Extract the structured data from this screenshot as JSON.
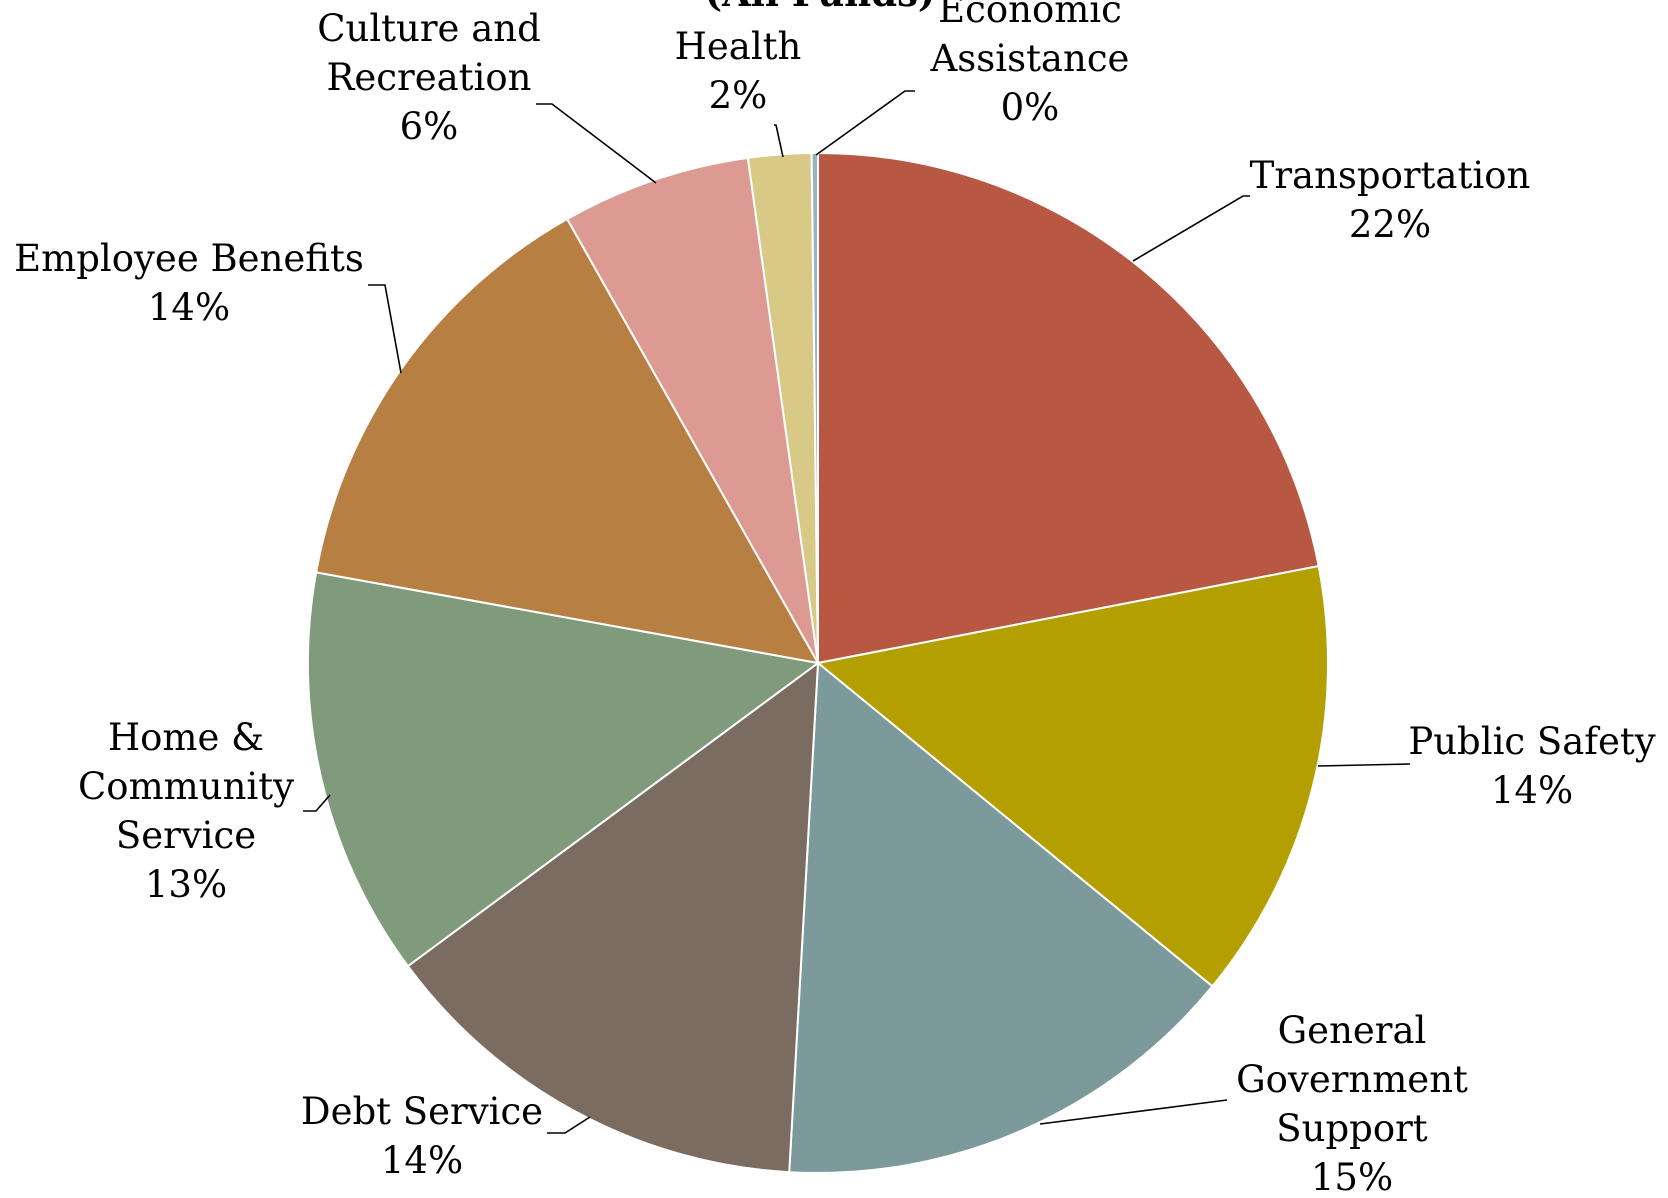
{
  "chart_data": {
    "type": "pie",
    "title": "(All Funds)",
    "start_angle_deg": 0,
    "direction": "clockwise",
    "slices": [
      {
        "label": "Transportation",
        "value": 22,
        "value_label": "22%",
        "color": "#b85842"
      },
      {
        "label": "Public Safety",
        "value": 14,
        "value_label": "14%",
        "color": "#b39f00"
      },
      {
        "label": "General Government Support",
        "value": 15,
        "value_label": "15%",
        "color": "#7c999b"
      },
      {
        "label": "Debt Service",
        "value": 14,
        "value_label": "14%",
        "color": "#7b6c62"
      },
      {
        "label": "Home & Community Service",
        "value": 13,
        "value_label": "13%",
        "color": "#7f9b7c"
      },
      {
        "label": "Employee Benefits",
        "value": 14,
        "value_label": "14%",
        "color": "#b87f42"
      },
      {
        "label": "Culture and Recreation",
        "value": 6,
        "value_label": "6%",
        "color": "#dc9a93"
      },
      {
        "label": "Health",
        "value": 2,
        "value_label": "2%",
        "color": "#d9c986"
      },
      {
        "label": "Economic Assistance",
        "value": 0.2,
        "value_label": "0%",
        "color": "#9ab3c4"
      }
    ]
  }
}
